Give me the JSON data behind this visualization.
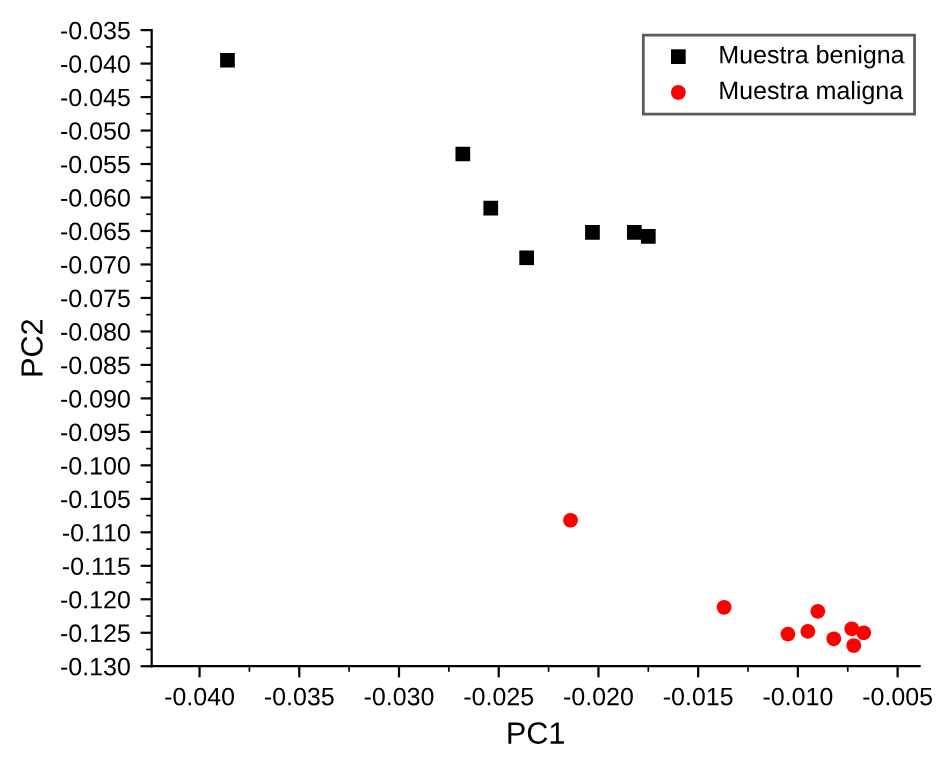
{
  "chart_data": {
    "type": "scatter",
    "xlabel": "PC1",
    "ylabel": "PC2",
    "xlim": [
      -0.0424,
      -0.0039
    ],
    "ylim": [
      -0.13,
      -0.035
    ],
    "xticks": [
      {
        "value": -0.04,
        "label": "-0.040"
      },
      {
        "value": -0.035,
        "label": "-0.035"
      },
      {
        "value": -0.03,
        "label": "-0.030"
      },
      {
        "value": -0.025,
        "label": "-0.025"
      },
      {
        "value": -0.02,
        "label": "-0.020"
      },
      {
        "value": -0.015,
        "label": "-0.015"
      },
      {
        "value": -0.01,
        "label": "-0.010"
      },
      {
        "value": -0.005,
        "label": "-0.005"
      }
    ],
    "yticks": [
      {
        "value": -0.035,
        "label": "-0.035"
      },
      {
        "value": -0.04,
        "label": "-0.040"
      },
      {
        "value": -0.045,
        "label": "-0.045"
      },
      {
        "value": -0.05,
        "label": "-0.050"
      },
      {
        "value": -0.055,
        "label": "-0.055"
      },
      {
        "value": -0.06,
        "label": "-0.060"
      },
      {
        "value": -0.065,
        "label": "-0.065"
      },
      {
        "value": -0.07,
        "label": "-0.070"
      },
      {
        "value": -0.075,
        "label": "-0.075"
      },
      {
        "value": -0.08,
        "label": "-0.080"
      },
      {
        "value": -0.085,
        "label": "-0.085"
      },
      {
        "value": -0.09,
        "label": "-0.090"
      },
      {
        "value": -0.095,
        "label": "-0.095"
      },
      {
        "value": -0.1,
        "label": "-0.100"
      },
      {
        "value": -0.105,
        "label": "-0.105"
      },
      {
        "value": -0.11,
        "label": "-0.110"
      },
      {
        "value": -0.115,
        "label": "-0.115"
      },
      {
        "value": -0.12,
        "label": "-0.120"
      },
      {
        "value": -0.125,
        "label": "-0.125"
      },
      {
        "value": -0.13,
        "label": "-0.130"
      }
    ],
    "legend": "top right",
    "grid": false,
    "series": [
      {
        "name": "Muestra benigna",
        "color": "#000000",
        "marker": "square",
        "x": [
          -0.0386,
          -0.0268,
          -0.0254,
          -0.0236,
          -0.0203,
          -0.0182,
          -0.0175
        ],
        "values": [
          -0.0395,
          -0.0535,
          -0.0616,
          -0.069,
          -0.0652,
          -0.0652,
          -0.0658
        ]
      },
      {
        "name": "Muestra maligna",
        "color": "#ff0000",
        "marker": "circle",
        "x": [
          -0.0214,
          -0.0137,
          -0.0105,
          -0.0095,
          -0.009,
          -0.0082,
          -0.0073,
          -0.0072,
          -0.0067
        ],
        "values": [
          -0.1082,
          -0.1212,
          -0.1252,
          -0.1248,
          -0.1218,
          -0.1259,
          -0.1244,
          -0.1269,
          -0.125
        ]
      }
    ]
  }
}
